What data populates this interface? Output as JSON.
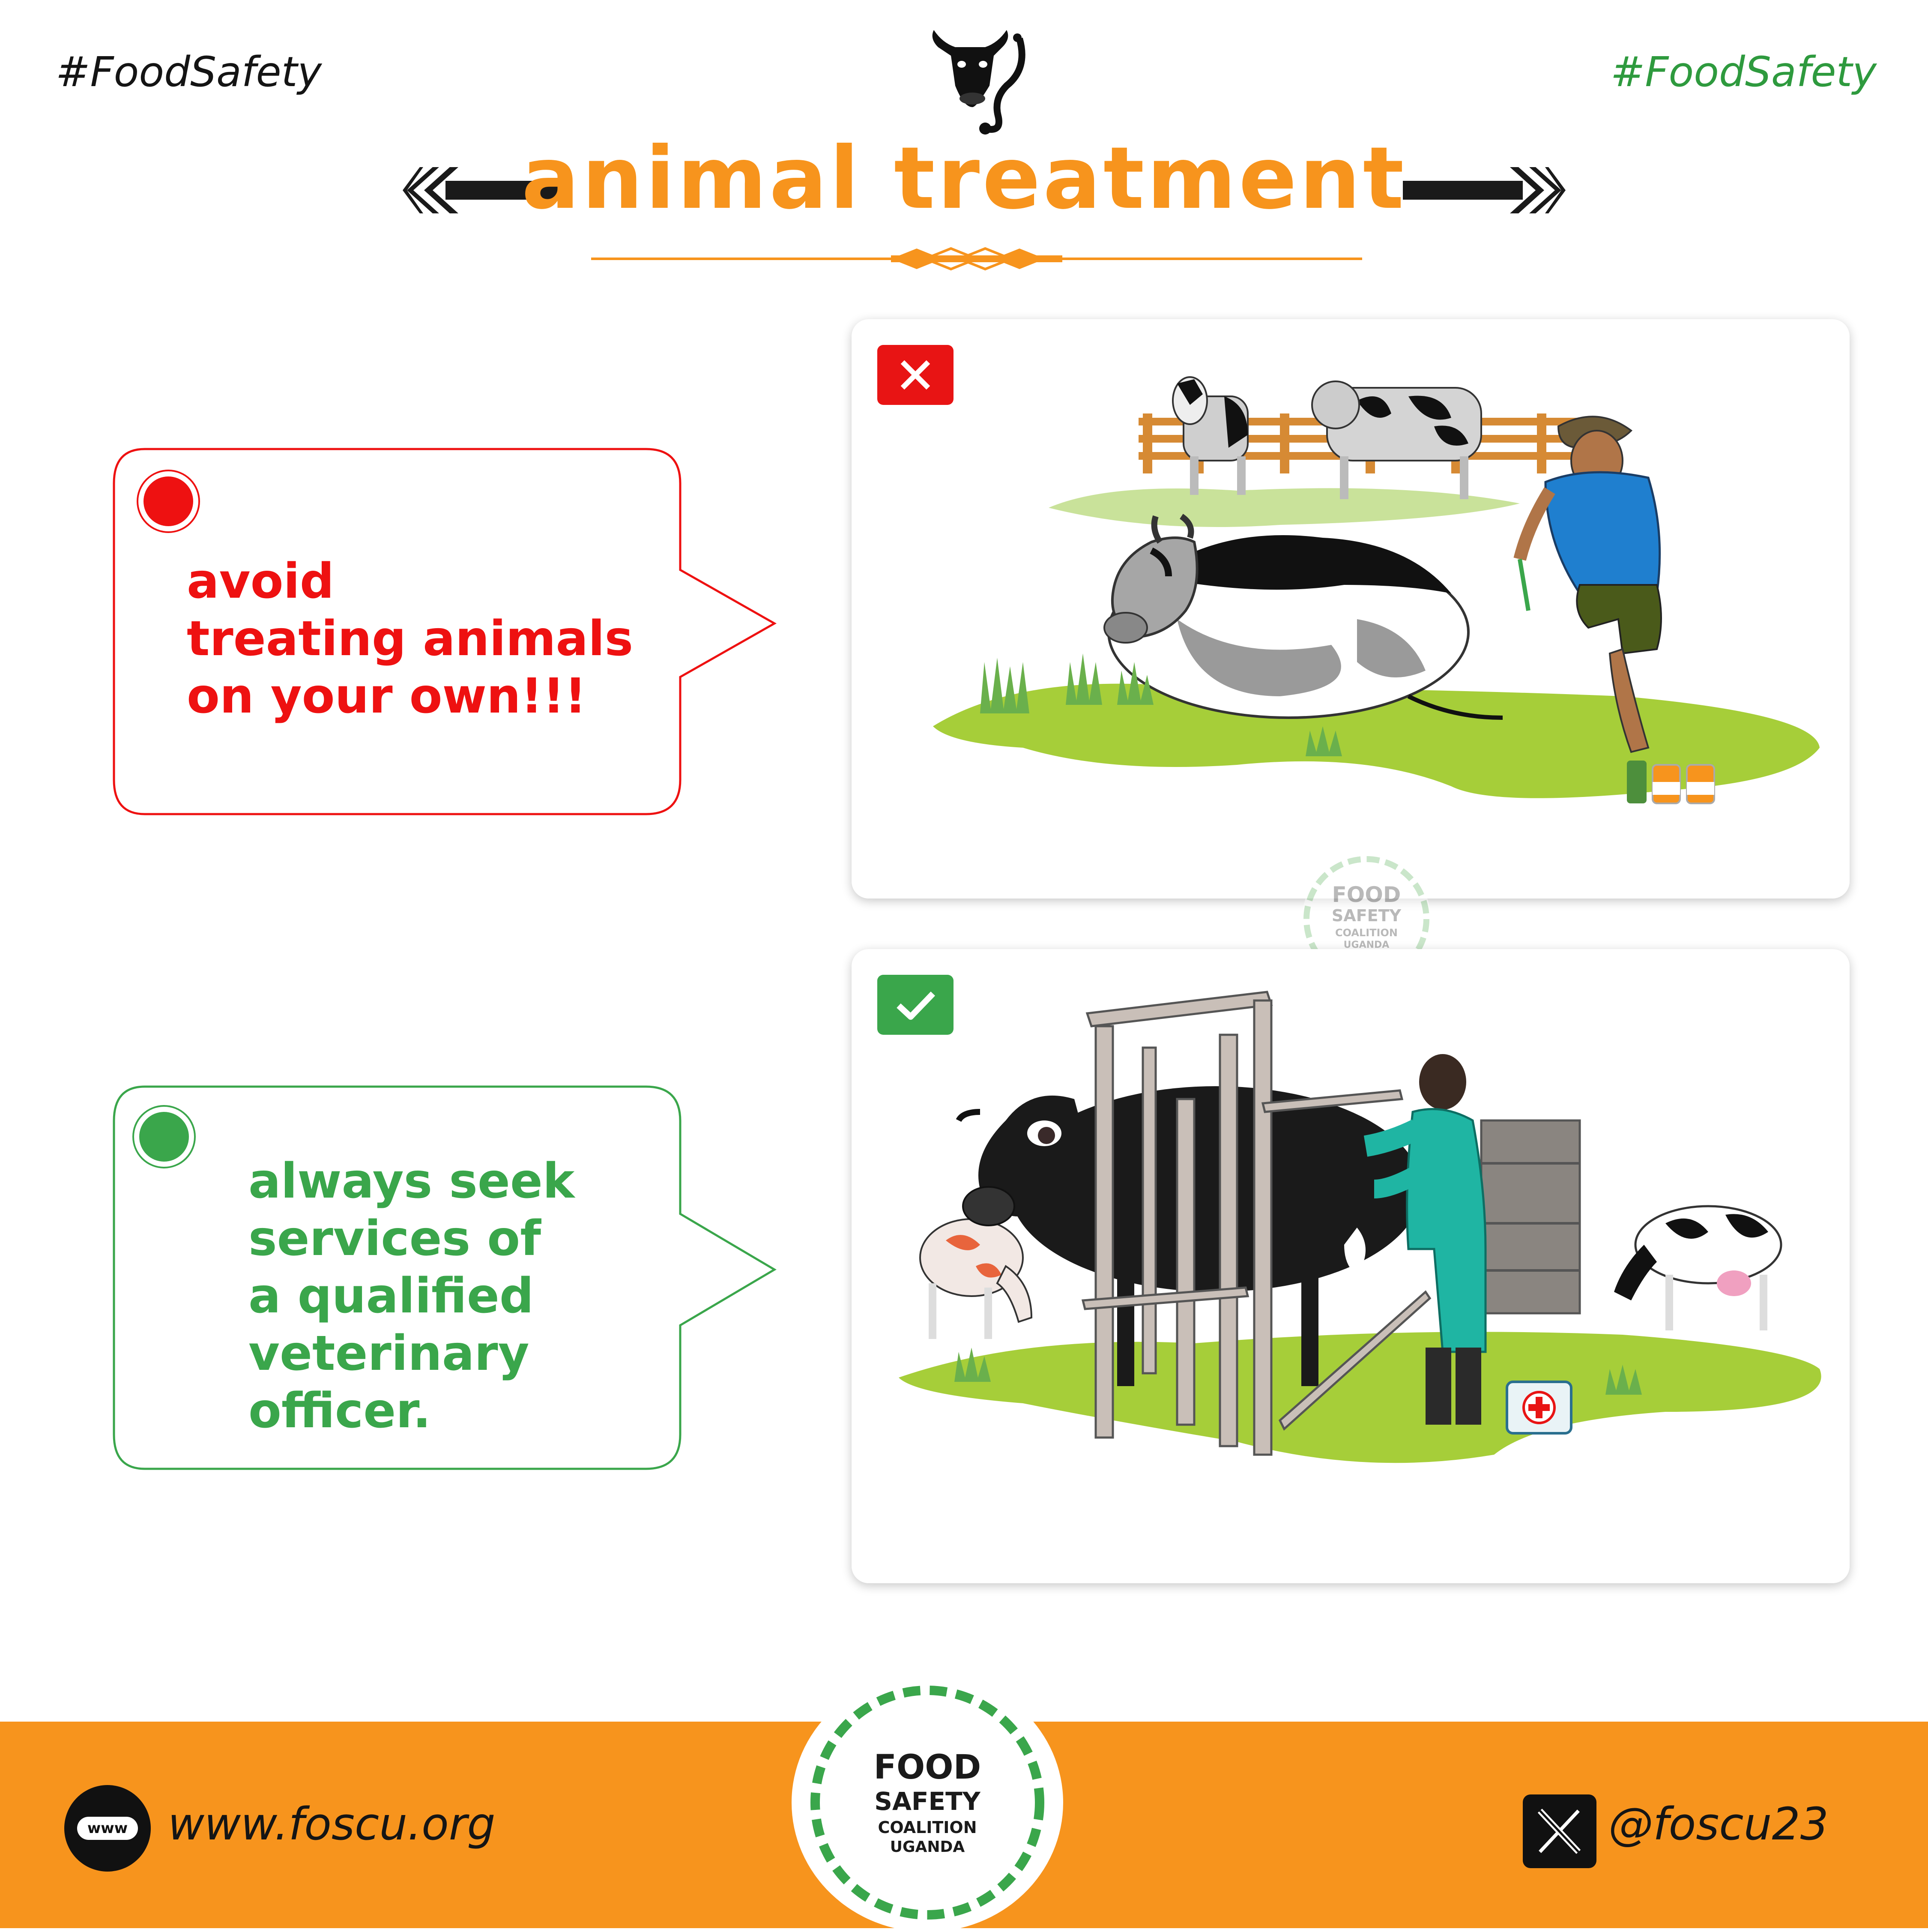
{
  "header": {
    "hashtag_left": "#FoodSafety",
    "hashtag_right": "#FoodSafety",
    "title": "animal treatment",
    "header_icon": "cow-stethoscope-icon"
  },
  "panels": {
    "bad": {
      "badge_icon": "cross-icon",
      "text": "avoid\ntreating animals\non your own!!!",
      "indicator_color": "#ee1111",
      "illustration": "farmer-injecting-cow-illustration"
    },
    "good": {
      "badge_icon": "check-icon",
      "text": "always seek\nservices of\na qualified\nveterinary\nofficer.",
      "indicator_color": "#3aa64b",
      "illustration": "veterinary-officer-treating-cow-illustration"
    }
  },
  "watermark": {
    "line1": "FOOD",
    "line2": "SAFETY",
    "line3": "COALITION",
    "line4": "UGANDA"
  },
  "footer": {
    "website_icon_label": "www",
    "website": "www.foscu.org",
    "social_icon": "x-logo-icon",
    "handle": "@foscu23",
    "logo": {
      "line1": "FOOD",
      "line2": "SAFETY",
      "line3": "COALITION",
      "line4": "UGANDA"
    }
  },
  "colors": {
    "accent_orange": "#f7941d",
    "bad_red": "#ee1111",
    "good_green": "#3aa64b",
    "grass_green": "#a6ce39"
  }
}
